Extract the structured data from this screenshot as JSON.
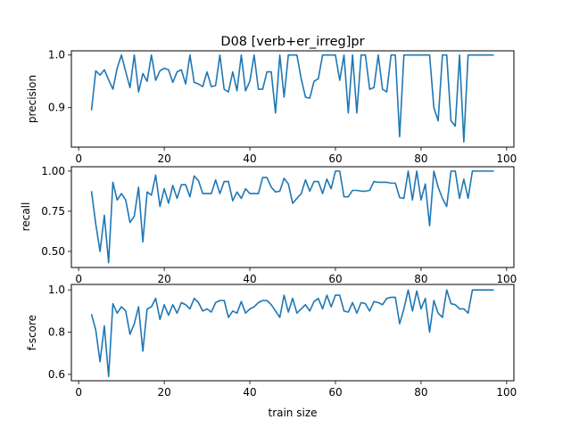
{
  "figure": {
    "title": "D08 [verb+er_irreg]pr",
    "xlabel": "train size",
    "line_color": "#1f77b4"
  },
  "chart_data": [
    {
      "type": "line",
      "title": "D08 [verb+er_irreg]pr",
      "xlabel": "",
      "ylabel": "precision",
      "xlim": [
        -1.7,
        101.7
      ],
      "ylim": [
        0.825,
        1.008
      ],
      "xticks": [
        0,
        20,
        40,
        60,
        80,
        100
      ],
      "xtick_labels": [
        "0",
        "20",
        "40",
        "60",
        "80",
        "100"
      ],
      "yticks": [
        0.9,
        1.0
      ],
      "ytick_labels": [
        "0.9",
        "1.0"
      ],
      "grid": false,
      "series": [
        {
          "name": "",
          "x": [
            3,
            4,
            5,
            6,
            7,
            8,
            9,
            10,
            11,
            12,
            13,
            14,
            15,
            16,
            17,
            18,
            19,
            20,
            21,
            22,
            23,
            24,
            25,
            26,
            27,
            28,
            29,
            30,
            31,
            32,
            33,
            34,
            35,
            36,
            37,
            38,
            39,
            40,
            41,
            42,
            43,
            44,
            45,
            46,
            47,
            48,
            49,
            50,
            51,
            52,
            53,
            54,
            55,
            56,
            57,
            58,
            59,
            60,
            61,
            62,
            63,
            64,
            65,
            66,
            67,
            68,
            69,
            70,
            71,
            72,
            73,
            74,
            75,
            76,
            77,
            78,
            79,
            80,
            81,
            82,
            83,
            84,
            85,
            86,
            87,
            88,
            89,
            90,
            91,
            92,
            93,
            94,
            95,
            96,
            97
          ],
          "y": [
            0.895,
            0.97,
            0.962,
            0.972,
            0.953,
            0.935,
            0.975,
            1.0,
            0.968,
            0.938,
            1.0,
            0.93,
            0.965,
            0.95,
            1.0,
            0.952,
            0.97,
            0.975,
            0.972,
            0.948,
            0.968,
            0.972,
            0.945,
            1.0,
            0.948,
            0.945,
            0.94,
            0.968,
            0.94,
            0.942,
            1.0,
            0.935,
            0.93,
            0.968,
            0.932,
            1.0,
            0.932,
            0.95,
            1.0,
            0.935,
            0.935,
            0.968,
            0.968,
            0.89,
            1.0,
            0.92,
            1.0,
            1.0,
            1.0,
            0.955,
            0.92,
            0.918,
            0.95,
            0.955,
            1.0,
            1.0,
            1.0,
            1.0,
            0.952,
            1.0,
            0.89,
            1.0,
            0.89,
            1.0,
            1.0,
            0.935,
            0.938,
            1.0,
            0.935,
            0.93,
            1.0,
            1.0,
            0.845,
            1.0,
            1.0,
            1.0,
            1.0,
            1.0,
            1.0,
            1.0,
            0.9,
            0.875,
            1.0,
            1.0,
            0.875,
            0.865,
            1.0,
            0.835,
            1.0,
            1.0,
            1.0,
            1.0,
            1.0,
            1.0,
            1.0
          ]
        }
      ]
    },
    {
      "type": "line",
      "title": "",
      "xlabel": "",
      "ylabel": "recall",
      "xlim": [
        -1.7,
        101.7
      ],
      "ylim": [
        0.4,
        1.027
      ],
      "xticks": [
        0,
        20,
        40,
        60,
        80,
        100
      ],
      "xtick_labels": [
        "0",
        "20",
        "40",
        "60",
        "80",
        "100"
      ],
      "yticks": [
        0.5,
        0.75,
        1.0
      ],
      "ytick_labels": [
        "0.50",
        "0.75",
        "1.00"
      ],
      "grid": false,
      "series": [
        {
          "name": "",
          "x": [
            3,
            4,
            5,
            6,
            7,
            8,
            9,
            10,
            11,
            12,
            13,
            14,
            15,
            16,
            17,
            18,
            19,
            20,
            21,
            22,
            23,
            24,
            25,
            26,
            27,
            28,
            29,
            30,
            31,
            32,
            33,
            34,
            35,
            36,
            37,
            38,
            39,
            40,
            41,
            42,
            43,
            44,
            45,
            46,
            47,
            48,
            49,
            50,
            51,
            52,
            53,
            54,
            55,
            56,
            57,
            58,
            59,
            60,
            61,
            62,
            63,
            64,
            65,
            66,
            67,
            68,
            69,
            70,
            71,
            72,
            73,
            74,
            75,
            76,
            77,
            78,
            79,
            80,
            81,
            82,
            83,
            84,
            85,
            86,
            87,
            88,
            89,
            90,
            91,
            92,
            93,
            94,
            95,
            96,
            97
          ],
          "y": [
            0.875,
            0.67,
            0.5,
            0.725,
            0.43,
            0.93,
            0.82,
            0.86,
            0.82,
            0.68,
            0.72,
            0.9,
            0.56,
            0.87,
            0.85,
            0.975,
            0.78,
            0.89,
            0.8,
            0.91,
            0.83,
            0.915,
            0.915,
            0.84,
            0.97,
            0.94,
            0.86,
            0.86,
            0.86,
            0.945,
            0.86,
            0.935,
            0.935,
            0.815,
            0.87,
            0.83,
            0.89,
            0.86,
            0.86,
            0.86,
            0.96,
            0.96,
            0.9,
            0.87,
            0.875,
            0.955,
            0.92,
            0.8,
            0.83,
            0.86,
            0.945,
            0.875,
            0.935,
            0.935,
            0.86,
            0.95,
            0.89,
            1.0,
            1.0,
            0.84,
            0.84,
            0.88,
            0.88,
            0.875,
            0.875,
            0.88,
            0.935,
            0.93,
            0.93,
            0.93,
            0.925,
            0.925,
            0.835,
            0.83,
            1.0,
            0.82,
            1.0,
            0.82,
            0.92,
            0.66,
            1.0,
            0.9,
            0.83,
            0.78,
            1.0,
            1.0,
            0.83,
            0.95,
            0.83,
            1.0,
            1.0,
            1.0,
            1.0,
            1.0,
            1.0
          ]
        }
      ]
    },
    {
      "type": "line",
      "title": "",
      "xlabel": "train size",
      "ylabel": "f-score",
      "xlim": [
        -1.7,
        101.7
      ],
      "ylim": [
        0.57,
        1.026
      ],
      "xticks": [
        0,
        20,
        40,
        60,
        80,
        100
      ],
      "xtick_labels": [
        "0",
        "20",
        "40",
        "60",
        "80",
        "100"
      ],
      "yticks": [
        0.6,
        0.8,
        1.0
      ],
      "ytick_labels": [
        "0.6",
        "0.8",
        "1.0"
      ],
      "grid": false,
      "series": [
        {
          "name": "",
          "x": [
            3,
            4,
            5,
            6,
            7,
            8,
            9,
            10,
            11,
            12,
            13,
            14,
            15,
            16,
            17,
            18,
            19,
            20,
            21,
            22,
            23,
            24,
            25,
            26,
            27,
            28,
            29,
            30,
            31,
            32,
            33,
            34,
            35,
            36,
            37,
            38,
            39,
            40,
            41,
            42,
            43,
            44,
            45,
            46,
            47,
            48,
            49,
            50,
            51,
            52,
            53,
            54,
            55,
            56,
            57,
            58,
            59,
            60,
            61,
            62,
            63,
            64,
            65,
            66,
            67,
            68,
            69,
            70,
            71,
            72,
            73,
            74,
            75,
            76,
            77,
            78,
            79,
            80,
            81,
            82,
            83,
            84,
            85,
            86,
            87,
            88,
            89,
            90,
            91,
            92,
            93,
            94,
            95,
            96,
            97
          ],
          "y": [
            0.885,
            0.81,
            0.66,
            0.83,
            0.59,
            0.935,
            0.89,
            0.92,
            0.9,
            0.79,
            0.84,
            0.92,
            0.71,
            0.91,
            0.92,
            0.96,
            0.86,
            0.93,
            0.88,
            0.93,
            0.89,
            0.94,
            0.93,
            0.91,
            0.96,
            0.94,
            0.9,
            0.91,
            0.895,
            0.94,
            0.95,
            0.95,
            0.87,
            0.9,
            0.89,
            0.945,
            0.89,
            0.91,
            0.92,
            0.94,
            0.95,
            0.95,
            0.93,
            0.9,
            0.87,
            0.975,
            0.895,
            0.96,
            0.89,
            0.91,
            0.93,
            0.9,
            0.945,
            0.96,
            0.91,
            0.975,
            0.92,
            0.975,
            0.975,
            0.9,
            0.895,
            0.94,
            0.89,
            0.94,
            0.935,
            0.9,
            0.945,
            0.94,
            0.93,
            0.96,
            0.965,
            0.965,
            0.84,
            0.91,
            1.0,
            0.9,
            0.995,
            0.91,
            0.96,
            0.8,
            0.95,
            0.89,
            0.87,
            1.0,
            0.935,
            0.93,
            0.91,
            0.91,
            0.89,
            1.0,
            1.0,
            1.0,
            1.0,
            1.0,
            1.0
          ]
        }
      ]
    }
  ]
}
